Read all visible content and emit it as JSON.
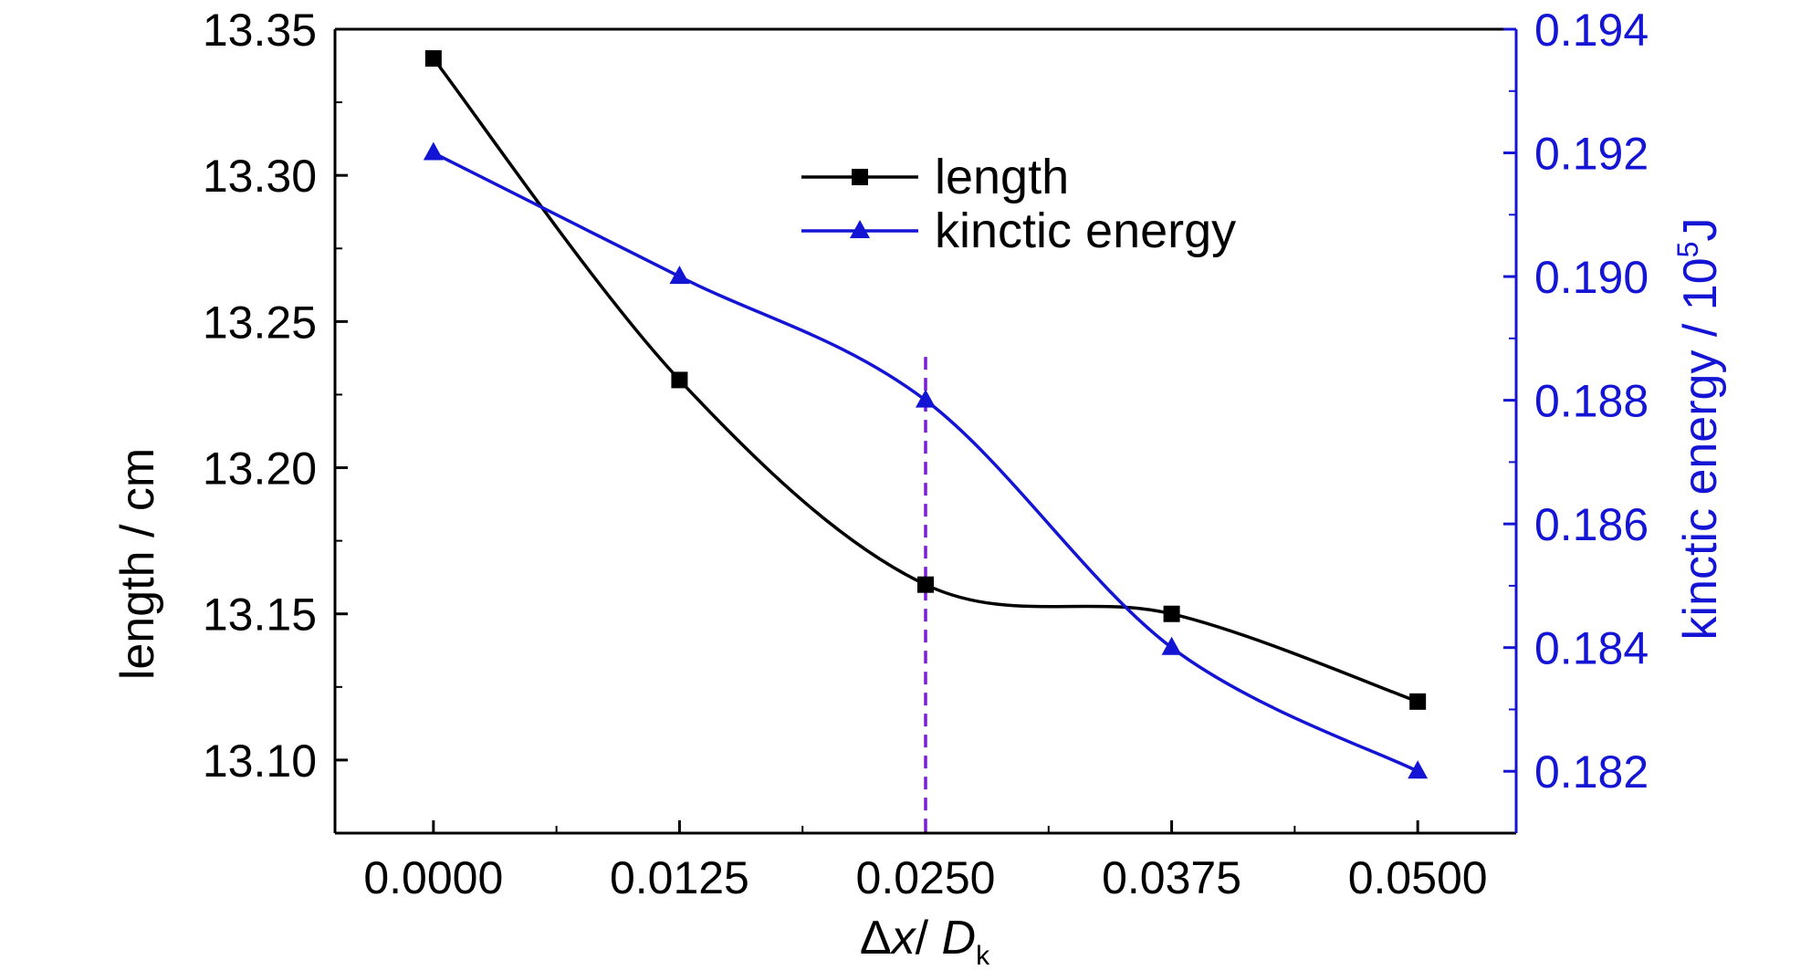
{
  "chart_data": {
    "type": "line",
    "x": [
      0.0,
      0.0125,
      0.025,
      0.0375,
      0.05
    ],
    "xticks": [
      "0.0000",
      "0.0125",
      "0.0250",
      "0.0375",
      "0.0500"
    ],
    "xlim": [
      -0.005,
      0.055
    ],
    "xlabel": {
      "delta": "Δ",
      "x": "x",
      "slash": "/ ",
      "D": "D",
      "sub": "k"
    },
    "left_axis": {
      "label": "length / cm",
      "ylim": [
        13.075,
        13.35
      ],
      "ticks": [
        "13.10",
        "13.15",
        "13.20",
        "13.25",
        "13.30",
        "13.35"
      ],
      "tick_values": [
        13.1,
        13.15,
        13.2,
        13.25,
        13.3,
        13.35
      ]
    },
    "right_axis": {
      "label_main": "kinctic energy / 10",
      "label_sup": "5",
      "label_unit": "J",
      "ylim": [
        0.181,
        0.194
      ],
      "ticks": [
        "0.182",
        "0.184",
        "0.186",
        "0.188",
        "0.190",
        "0.192",
        "0.194"
      ],
      "tick_values": [
        0.182,
        0.184,
        0.186,
        0.188,
        0.19,
        0.192,
        0.194
      ],
      "color": "#1414d4"
    },
    "series": [
      {
        "name": "length",
        "axis": "left",
        "marker": "square",
        "color": "#000000",
        "values": [
          13.34,
          13.23,
          13.16,
          13.15,
          13.12
        ]
      },
      {
        "name": "kinctic energy",
        "axis": "right",
        "marker": "triangle",
        "color": "#1414d4",
        "values": [
          0.192,
          0.19,
          0.188,
          0.184,
          0.182
        ]
      }
    ],
    "reference_line": {
      "x": 0.025,
      "color": "#7a1fd6",
      "style": "dashed"
    },
    "legend_position": "top-center",
    "grid": false
  }
}
